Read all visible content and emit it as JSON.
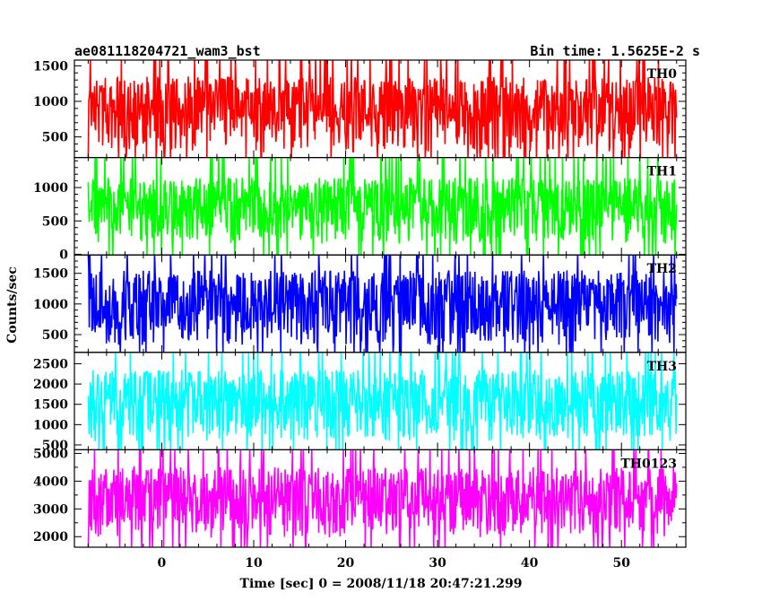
{
  "title_left": "ae081118204721_wam3_bst",
  "title_right": "Bin time: 1.5625E-2 s",
  "chart_data": {
    "type": "line",
    "title": "ae081118204721_wam3_bst",
    "bin_time": "Bin time: 1.5625E-2 s",
    "xlabel": "Time [sec] 0 = 2008/11/18 20:47:21.299",
    "ylabel": "Counts/sec",
    "xlim": [
      -9.5,
      57
    ],
    "x_data_range": [
      -8,
      56
    ],
    "x_ticks": [
      0,
      10,
      20,
      30,
      40,
      50
    ],
    "grid": false,
    "legend": "none",
    "panels": [
      {
        "name": "TH0",
        "color": "#ff0000",
        "ylim": [
          210,
          1580
        ],
        "y_ticks": [
          500,
          1000,
          1500
        ],
        "typical_low": 280,
        "typical_high": 1350
      },
      {
        "name": "TH1",
        "color": "#00ff00",
        "ylim": [
          -10,
          1450
        ],
        "y_ticks": [
          0,
          500,
          1000
        ],
        "typical_low": 150,
        "typical_high": 1150
      },
      {
        "name": "TH2",
        "color": "#0000ff",
        "ylim": [
          210,
          1800
        ],
        "y_ticks": [
          500,
          1000,
          1500
        ],
        "typical_low": 330,
        "typical_high": 1550
      },
      {
        "name": "TH3",
        "color": "#00ffff",
        "ylim": [
          380,
          2780
        ],
        "y_ticks": [
          500,
          1000,
          1500,
          2000,
          2500
        ],
        "typical_low": 580,
        "typical_high": 2350
      },
      {
        "name": "TH0123",
        "color": "#ff00ff",
        "ylim": [
          1620,
          5130
        ],
        "y_ticks": [
          2000,
          3000,
          4000,
          5000
        ],
        "typical_low": 1950,
        "typical_high": 4500
      }
    ]
  }
}
